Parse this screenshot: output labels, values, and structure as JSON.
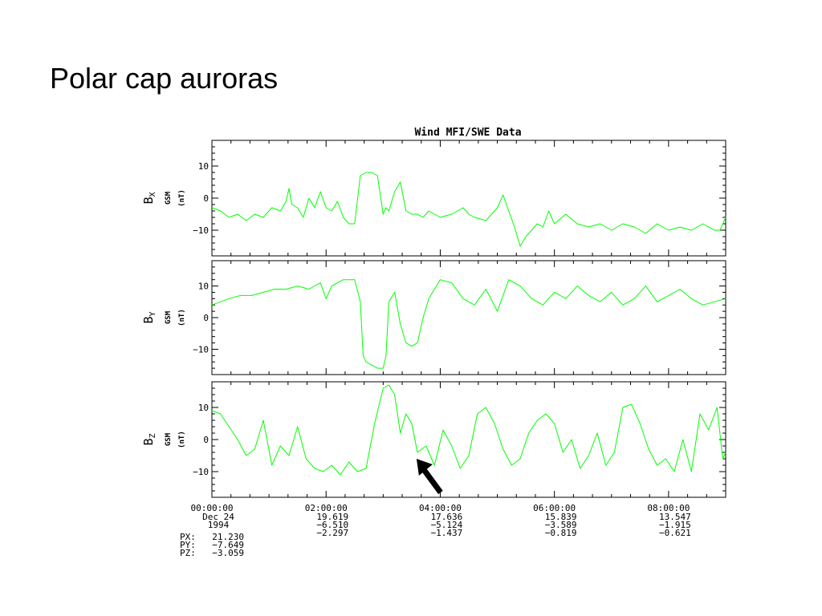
{
  "slide": {
    "title": "Polar cap auroras"
  },
  "chart_data": {
    "type": "line",
    "title": "Wind MFI/SWE Data",
    "line_color": "#00ff00",
    "x_domain_hours": [
      0,
      9
    ],
    "x_ticks": [
      {
        "time": "00:00:00",
        "hours": 0,
        "lines": [
          "Dec 24",
          "1994",
          ""
        ]
      },
      {
        "time": "02:00:00",
        "hours": 2,
        "lines": [
          "19.619",
          "−6.510",
          "−2.297"
        ]
      },
      {
        "time": "04:00:00",
        "hours": 4,
        "lines": [
          "17.636",
          "−5.124",
          "−1.437"
        ]
      },
      {
        "time": "06:00:00",
        "hours": 6,
        "lines": [
          "15.839",
          "−3.589",
          "−0.819"
        ]
      },
      {
        "time": "08:00:00",
        "hours": 8,
        "lines": [
          "13.547",
          "−1.915",
          "−0.621"
        ]
      }
    ],
    "row_labels": [
      {
        "label": "PX:",
        "value": "21.230"
      },
      {
        "label": "PY:",
        "value": "−7.649"
      },
      {
        "label": "PZ:",
        "value": "−3.059"
      }
    ],
    "panels": [
      {
        "name": "Bx",
        "ylabel_main": "B",
        "ylabel_sub": "X",
        "ylabel_coord": "GSM",
        "ylabel_unit": "(nT)",
        "ylim": [
          -18,
          18
        ],
        "yticks": [
          {
            "v": 10,
            "label": "10"
          },
          {
            "v": 0,
            "label": "0"
          },
          {
            "v": -10,
            "label": "−10"
          }
        ],
        "x": [
          0,
          0.15,
          0.3,
          0.45,
          0.6,
          0.75,
          0.9,
          1.05,
          1.2,
          1.3,
          1.35,
          1.4,
          1.5,
          1.6,
          1.7,
          1.8,
          1.9,
          2.0,
          2.1,
          2.2,
          2.3,
          2.4,
          2.5,
          2.6,
          2.7,
          2.8,
          2.9,
          3.0,
          3.05,
          3.1,
          3.2,
          3.3,
          3.4,
          3.5,
          3.6,
          3.7,
          3.8,
          4.0,
          4.2,
          4.4,
          4.5,
          4.6,
          4.8,
          5.0,
          5.1,
          5.2,
          5.3,
          5.4,
          5.5,
          5.6,
          5.7,
          5.8,
          5.9,
          6.0,
          6.2,
          6.4,
          6.6,
          6.8,
          7.0,
          7.2,
          7.4,
          7.6,
          7.8,
          8.0,
          8.2,
          8.4,
          8.6,
          8.8,
          8.9,
          9.0
        ],
        "y": [
          -3,
          -4,
          -6,
          -5,
          -7,
          -5,
          -6,
          -3,
          -4,
          -1,
          3,
          -2,
          -3,
          -6,
          0,
          -3,
          2,
          -3,
          -4,
          -1,
          -6,
          -8,
          -8,
          7,
          8,
          8,
          7,
          -5,
          -3,
          -4,
          2,
          5,
          -4,
          -5,
          -5,
          -6,
          -4,
          -6,
          -5,
          -3,
          -5,
          -6,
          -7,
          -3,
          1,
          -4,
          -9,
          -15,
          -12,
          -10,
          -8,
          -9,
          -4,
          -8,
          -5,
          -8,
          -9,
          -8,
          -10,
          -8,
          -9,
          -11,
          -8,
          -10,
          -9,
          -10,
          -8,
          -10,
          -10,
          -6
        ]
      },
      {
        "name": "By",
        "ylabel_main": "B",
        "ylabel_sub": "Y",
        "ylabel_coord": "GSM",
        "ylabel_unit": "(nT)",
        "ylim": [
          -18,
          18
        ],
        "yticks": [
          {
            "v": 10,
            "label": "10"
          },
          {
            "v": 0,
            "label": "0"
          },
          {
            "v": -10,
            "label": "−10"
          }
        ],
        "x": [
          0,
          0.15,
          0.3,
          0.5,
          0.7,
          0.9,
          1.1,
          1.3,
          1.5,
          1.7,
          1.9,
          2.0,
          2.1,
          2.3,
          2.5,
          2.6,
          2.65,
          2.7,
          2.8,
          2.9,
          3.0,
          3.05,
          3.1,
          3.2,
          3.3,
          3.4,
          3.5,
          3.6,
          3.7,
          3.8,
          4.0,
          4.2,
          4.4,
          4.6,
          4.8,
          5.0,
          5.2,
          5.4,
          5.6,
          5.8,
          6.0,
          6.2,
          6.4,
          6.6,
          6.8,
          7.0,
          7.2,
          7.4,
          7.6,
          7.8,
          8.0,
          8.2,
          8.4,
          8.6,
          8.8,
          9.0
        ],
        "y": [
          4,
          5,
          6,
          7,
          7,
          8,
          9,
          9,
          10,
          9,
          11,
          6,
          10,
          12,
          12,
          5,
          -12,
          -14,
          -15,
          -16,
          -16,
          -12,
          5,
          8,
          -2,
          -8,
          -9,
          -8,
          0,
          6,
          12,
          11,
          6,
          4,
          9,
          2,
          12,
          10,
          6,
          4,
          8,
          6,
          10,
          7,
          5,
          8,
          4,
          6,
          10,
          5,
          7,
          9,
          6,
          4,
          5,
          6
        ]
      },
      {
        "name": "Bz",
        "ylabel_main": "B",
        "ylabel_sub": "Z",
        "ylabel_coord": "GSM",
        "ylabel_unit": "(nT)",
        "ylim": [
          -18,
          18
        ],
        "yticks": [
          {
            "v": 10,
            "label": "10"
          },
          {
            "v": 0,
            "label": "0"
          },
          {
            "v": -10,
            "label": "−10"
          }
        ],
        "x": [
          0,
          0.15,
          0.3,
          0.45,
          0.6,
          0.75,
          0.9,
          1.05,
          1.2,
          1.35,
          1.5,
          1.65,
          1.8,
          1.95,
          2.1,
          2.25,
          2.4,
          2.55,
          2.7,
          2.85,
          3.0,
          3.1,
          3.2,
          3.3,
          3.4,
          3.5,
          3.6,
          3.75,
          3.9,
          4.05,
          4.2,
          4.35,
          4.5,
          4.65,
          4.8,
          4.95,
          5.1,
          5.25,
          5.4,
          5.55,
          5.7,
          5.85,
          6.0,
          6.15,
          6.3,
          6.45,
          6.6,
          6.75,
          6.9,
          7.05,
          7.2,
          7.35,
          7.5,
          7.65,
          7.8,
          7.95,
          8.1,
          8.25,
          8.4,
          8.55,
          8.7,
          8.85,
          8.95,
          9.0
        ],
        "y": [
          9,
          8,
          4,
          0,
          -5,
          -3,
          6,
          -8,
          -2,
          -5,
          4,
          -6,
          -9,
          -10,
          -8,
          -11,
          -7,
          -10,
          -9,
          5,
          16,
          17,
          14,
          2,
          8,
          5,
          -4,
          -2,
          -8,
          3,
          -2,
          -9,
          -5,
          8,
          10,
          5,
          -3,
          -8,
          -6,
          2,
          6,
          8,
          5,
          -4,
          0,
          -9,
          -5,
          2,
          -8,
          -4,
          10,
          11,
          5,
          -3,
          -8,
          -6,
          -10,
          0,
          -10,
          8,
          3,
          10,
          -6,
          -4
        ]
      }
    ],
    "annotation": {
      "type": "arrow",
      "points_to": {
        "panel": "Bz",
        "hours": 3.5,
        "value": -3
      }
    }
  }
}
